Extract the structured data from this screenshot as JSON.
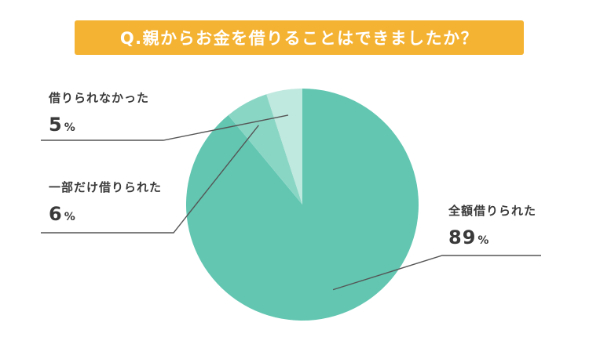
{
  "title": "Q.親からお金を借りることはできましたか？",
  "colors": {
    "banner": "#f5b334",
    "banner_text": "#ffffff",
    "slice_full": "#62c6b1",
    "slice_partial": "#8ad6c5",
    "slice_none": "#bfe8de",
    "leader_line": "#555555"
  },
  "chart_data": {
    "type": "pie",
    "title": "Q.親からお金を借りることはできましたか？",
    "unit": "%",
    "slices": [
      {
        "label": "全額借りられた",
        "value": 89
      },
      {
        "label": "一部だけ借りられた",
        "value": 6
      },
      {
        "label": "借りられなかった",
        "value": 5
      }
    ]
  }
}
